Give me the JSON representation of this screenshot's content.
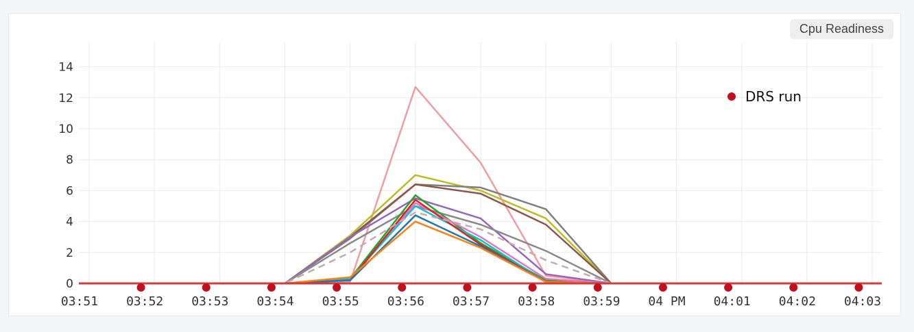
{
  "panel": {
    "tag_label": "Cpu Readiness"
  },
  "colors": {
    "drs_marker": "#c0111d",
    "baseline": "#d33c3c",
    "grid": "#ebebeb"
  },
  "chart_data": {
    "type": "line",
    "title": "",
    "xlabel": "",
    "ylabel": "",
    "x": [
      "03:51",
      "03:52",
      "03:53",
      "03:54",
      "03:55",
      "03:56",
      "03:57",
      "03:58",
      "03:59",
      "04 PM",
      "04:01",
      "04:02",
      "04:03"
    ],
    "ylim": [
      0,
      15
    ],
    "yticks": [
      0,
      2,
      4,
      6,
      8,
      10,
      12,
      14
    ],
    "grid": true,
    "legend": {
      "placement": "top-right",
      "entries": [
        {
          "label": "DRS run",
          "marker": "dot"
        }
      ]
    },
    "series": [
      {
        "color": "#f29d9d",
        "values": [
          0,
          0,
          0,
          0,
          0.1,
          12.7,
          7.8,
          0.5,
          0,
          0,
          0,
          0,
          0
        ]
      },
      {
        "color": "#bcbd22",
        "values": [
          0,
          0,
          0,
          0,
          3.1,
          7.0,
          6.0,
          4.2,
          0,
          0,
          0,
          0,
          0
        ]
      },
      {
        "color": "#7f7f7f",
        "values": [
          0,
          0,
          0,
          0,
          2.9,
          6.4,
          6.2,
          4.8,
          0,
          0,
          0,
          0,
          0
        ]
      },
      {
        "color": "#8c564b",
        "values": [
          0,
          0,
          0,
          0,
          3.0,
          6.4,
          5.8,
          3.8,
          0,
          0,
          0,
          0,
          0
        ]
      },
      {
        "color": "#9467bd",
        "values": [
          0,
          0,
          0,
          0,
          3.0,
          5.5,
          4.2,
          0.6,
          0,
          0,
          0,
          0,
          0
        ]
      },
      {
        "color": "#8a8a8a",
        "values": [
          0,
          0,
          0,
          0,
          2.6,
          5.0,
          3.8,
          2.1,
          0,
          0,
          0,
          0,
          0
        ]
      },
      {
        "color": "#2ca02c",
        "values": [
          0,
          0,
          0,
          0,
          0.3,
          5.7,
          2.6,
          0.2,
          0,
          0,
          0,
          0,
          0
        ]
      },
      {
        "color": "#e377c2",
        "values": [
          0,
          0,
          0,
          0,
          0.2,
          5.2,
          3.0,
          0.3,
          0,
          0,
          0,
          0,
          0
        ]
      },
      {
        "color": "#17becf",
        "values": [
          0,
          0,
          0,
          0,
          0.3,
          5.0,
          2.8,
          0.1,
          0,
          0,
          0,
          0,
          0
        ]
      },
      {
        "color": "#d62728",
        "values": [
          0,
          0,
          0,
          0,
          0.2,
          5.4,
          2.5,
          0.1,
          0,
          0,
          0,
          0,
          0
        ]
      },
      {
        "color": "#1f77b4",
        "values": [
          0,
          0,
          0,
          0,
          0.2,
          4.4,
          2.4,
          0.1,
          0,
          0,
          0,
          0,
          0
        ]
      },
      {
        "color": "#ff7f0e",
        "values": [
          0,
          0,
          0,
          0,
          0.4,
          4.0,
          2.3,
          0.1,
          0,
          0,
          0,
          0,
          0
        ]
      },
      {
        "color": "#c8aaaa",
        "dashed": true,
        "values": [
          0,
          0,
          0,
          0,
          2.0,
          4.6,
          3.5,
          1.5,
          0,
          0,
          0,
          0,
          0
        ]
      }
    ],
    "drs_runs": [
      "03:51",
      "03:52",
      "03:53",
      "03:54",
      "03:55",
      "03:56",
      "03:57",
      "03:58",
      "03:59",
      "04 PM",
      "04:01",
      "04:02",
      "04:03"
    ]
  }
}
